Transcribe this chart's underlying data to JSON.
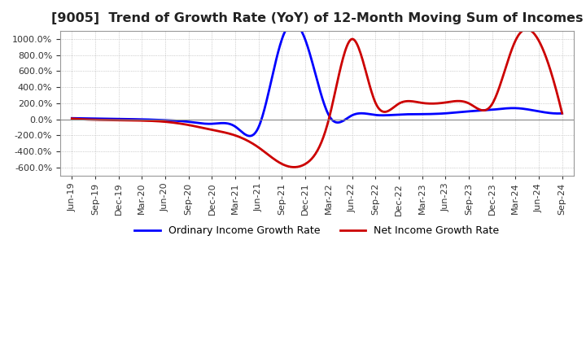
{
  "title": "[9005]  Trend of Growth Rate (YoY) of 12-Month Moving Sum of Incomes",
  "title_fontsize": 11.5,
  "ylim": [
    -700,
    1100
  ],
  "yticks": [
    -600,
    -400,
    -200,
    0,
    200,
    400,
    600,
    800,
    1000
  ],
  "background_color": "#ffffff",
  "ordinary_color": "#0000ff",
  "net_color": "#cc0000",
  "legend_ordinary": "Ordinary Income Growth Rate",
  "legend_net": "Net Income Growth Rate",
  "x_labels": [
    "Jun-19",
    "Sep-19",
    "Dec-19",
    "Mar-20",
    "Jun-20",
    "Sep-20",
    "Dec-20",
    "Mar-21",
    "Jun-21",
    "Sep-21",
    "Dec-21",
    "Mar-22",
    "Jun-22",
    "Sep-22",
    "Dec-22",
    "Mar-23",
    "Jun-23",
    "Sep-23",
    "Dec-23",
    "Mar-24",
    "Jun-24",
    "Sep-24"
  ],
  "ordinary_income": [
    15,
    10,
    5,
    0,
    -10,
    -30,
    -55,
    -90,
    -95,
    1000,
    990,
    55,
    50,
    55,
    60,
    65,
    75,
    100,
    120,
    140,
    100,
    75
  ],
  "net_income": [
    10,
    -5,
    -10,
    -15,
    -30,
    -70,
    -130,
    -200,
    -350,
    -555,
    -555,
    -5,
    1000,
    210,
    195,
    205,
    210,
    200,
    190,
    980,
    980,
    75
  ]
}
